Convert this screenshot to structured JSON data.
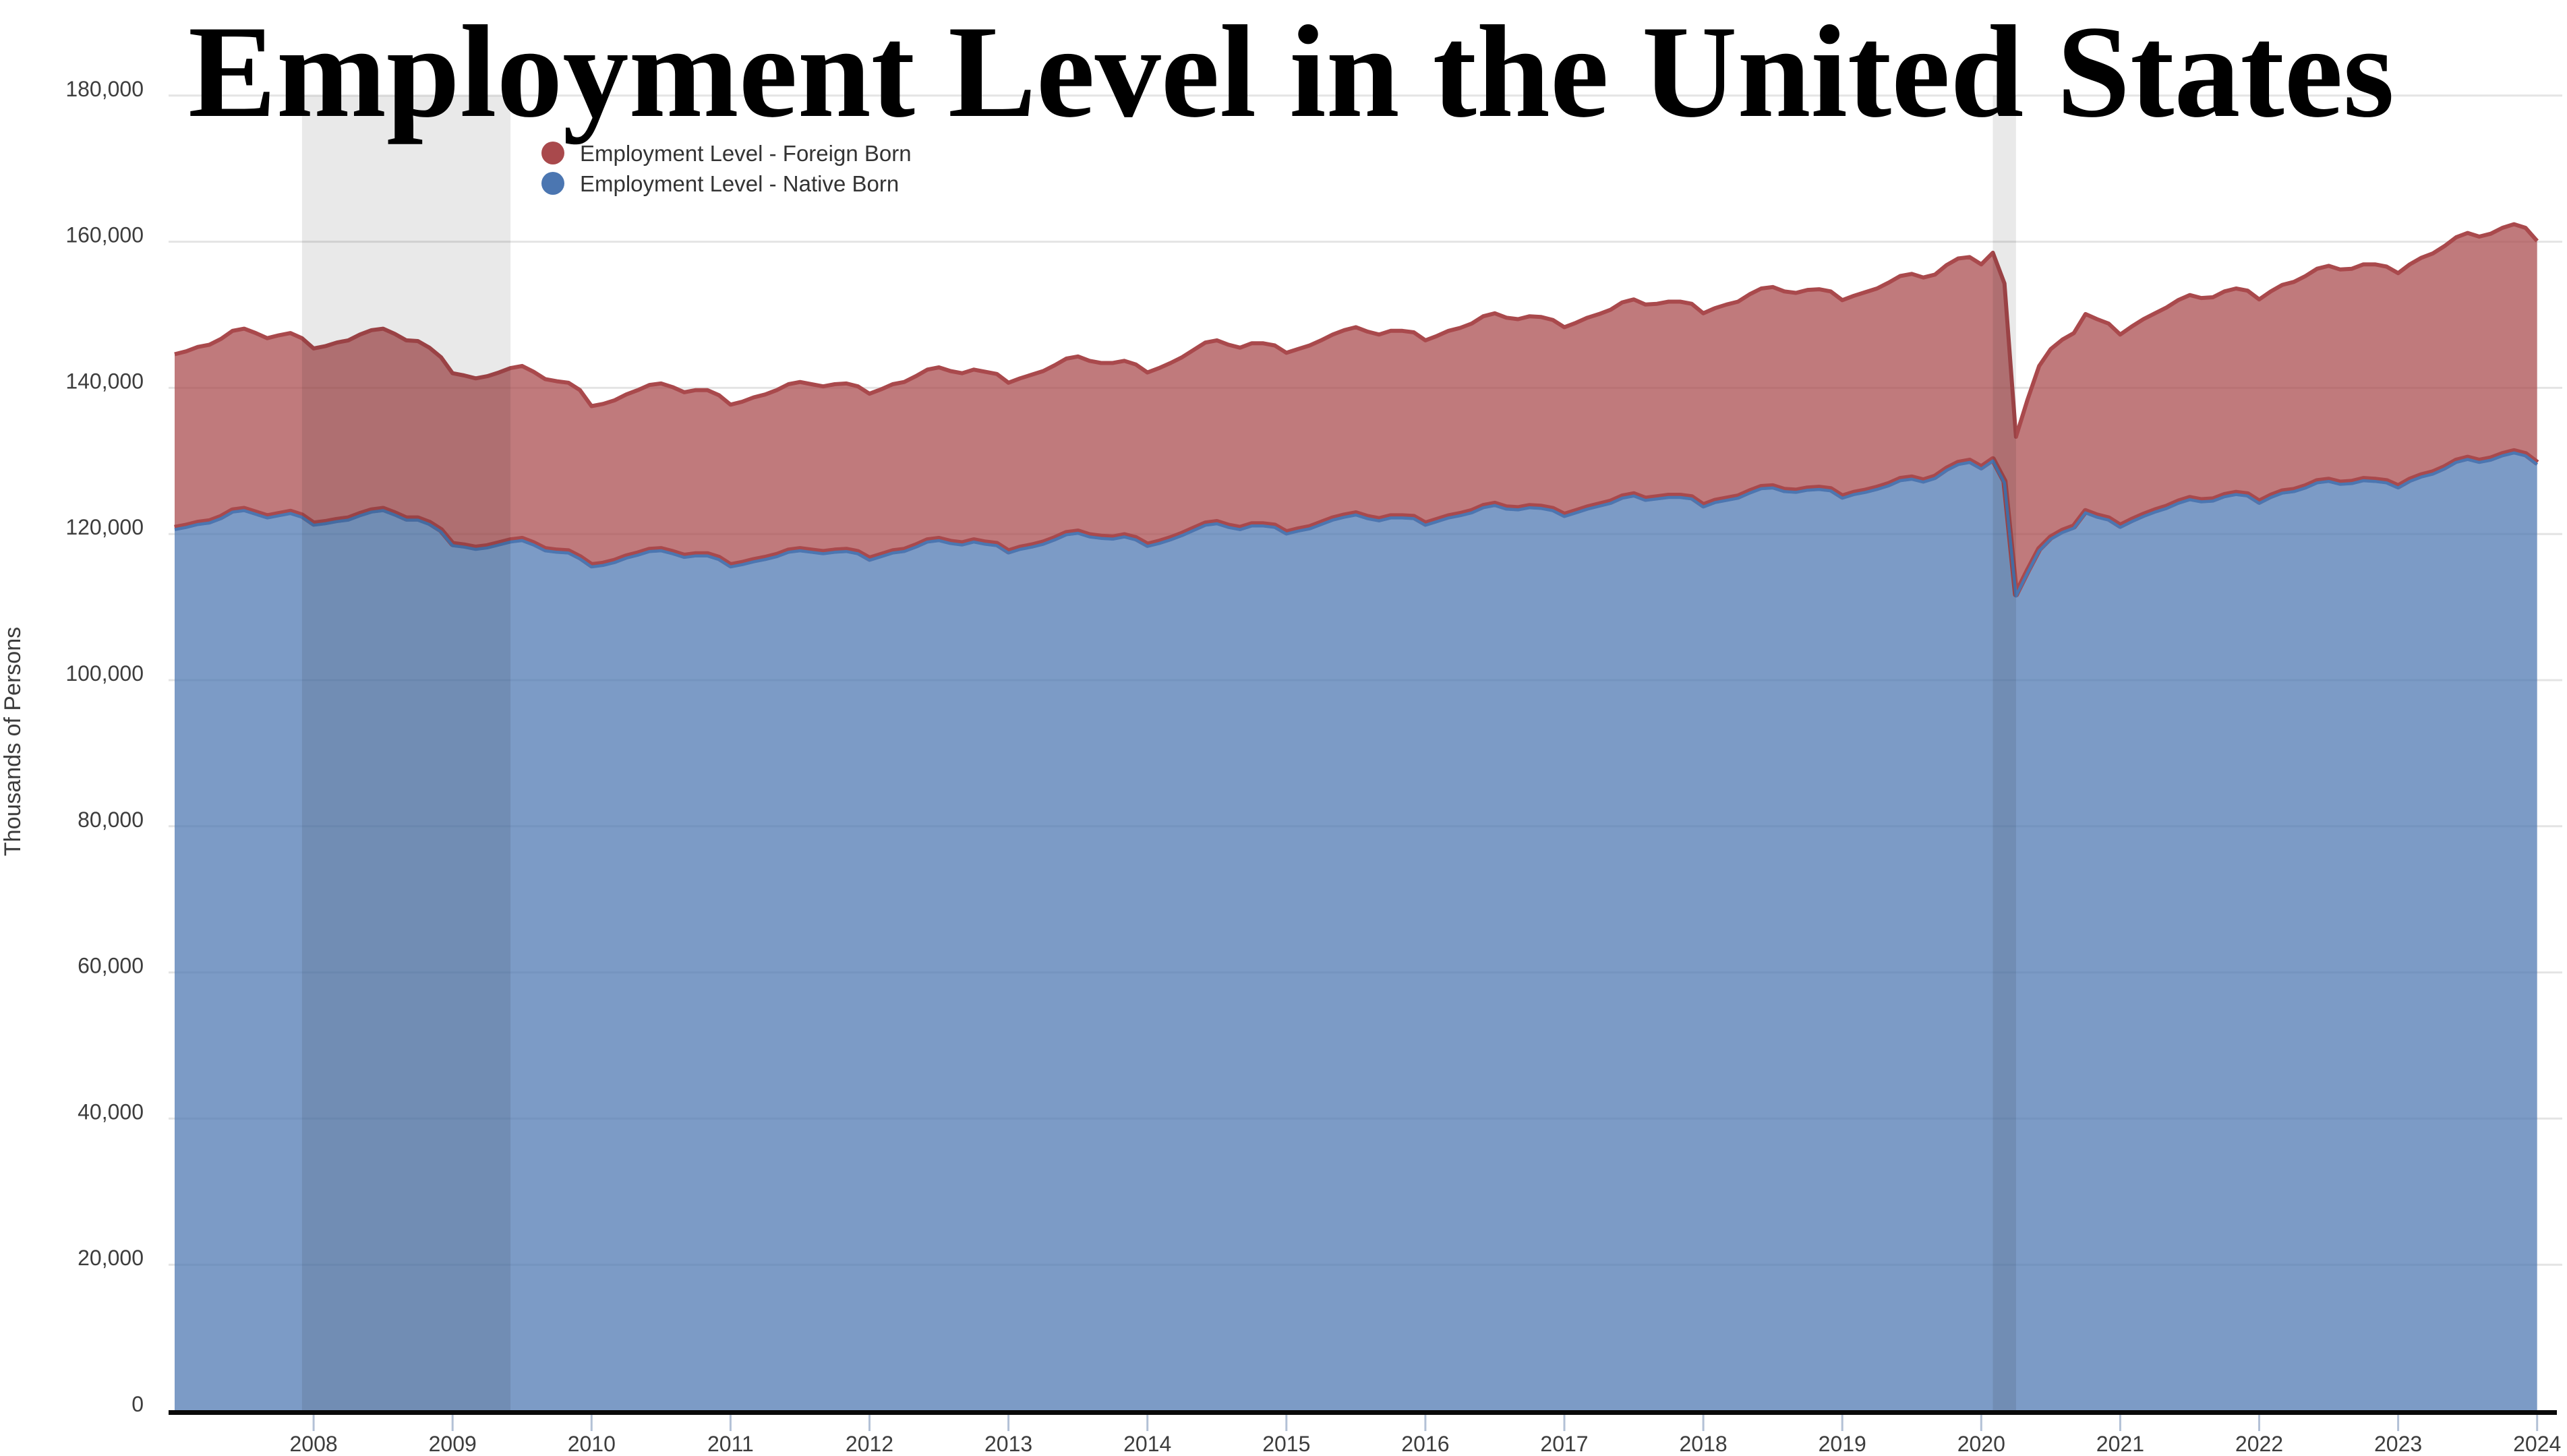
{
  "page": {
    "background": "#ffffff"
  },
  "chart_data": {
    "type": "area",
    "stacked": true,
    "title": "Employment Level in the United States",
    "ylabel": "Thousands of Persons",
    "frequency": "monthly",
    "x_start": "2007-01",
    "x_end": "2024-01",
    "ylim": [
      0,
      180000
    ],
    "ytick_step": 20000,
    "ytick_labels": [
      "0",
      "20,000",
      "40,000",
      "60,000",
      "80,000",
      "100,000",
      "120,000",
      "140,000",
      "160,000",
      "180,000"
    ],
    "xtick_years": [
      "2008",
      "2009",
      "2010",
      "2011",
      "2012",
      "2013",
      "2014",
      "2015",
      "2016",
      "2017",
      "2018",
      "2019",
      "2020",
      "2021",
      "2022",
      "2023",
      "2024"
    ],
    "grid": "horizontal",
    "gridline_color": "#e4e4e4",
    "axis_line_color": "#0a0a0a",
    "tick_color": "#b3c1d6",
    "legend_position": "top-left-inside",
    "fill_opacity": 0.73,
    "recession_band_color": "rgba(0,0,0,0.085)",
    "recession_bands": [
      {
        "from": "2007-12",
        "to": "2009-06"
      },
      {
        "from": "2020-02",
        "to": "2020-04"
      }
    ],
    "series": [
      {
        "name": "Employment Level - Foreign Born",
        "color": "#a9494c",
        "values": [
          24000,
          24100,
          24300,
          24400,
          24600,
          24800,
          24900,
          24800,
          24600,
          24700,
          24700,
          24500,
          24200,
          24300,
          24500,
          24600,
          24800,
          24900,
          24900,
          24800,
          24600,
          24500,
          24200,
          23900,
          23600,
          23500,
          23400,
          23500,
          23600,
          23800,
          23900,
          23700,
          23500,
          23400,
          23300,
          23100,
          22000,
          22100,
          22200,
          22400,
          22600,
          22800,
          22900,
          22800,
          22600,
          22700,
          22700,
          22500,
          22200,
          22300,
          22500,
          22600,
          22800,
          23000,
          23100,
          23000,
          22900,
          23000,
          23000,
          22900,
          22800,
          22900,
          23100,
          23200,
          23400,
          23600,
          23700,
          23600,
          23500,
          23600,
          23600,
          23500,
          23300,
          23400,
          23600,
          23700,
          23900,
          24100,
          24200,
          24100,
          24000,
          24100,
          24100,
          24000,
          23800,
          24000,
          24200,
          24400,
          24700,
          25000,
          25100,
          25000,
          24900,
          25000,
          25000,
          24900,
          24800,
          24900,
          25100,
          25200,
          25400,
          25600,
          25700,
          25600,
          25500,
          25600,
          25600,
          25500,
          25300,
          25400,
          25600,
          25700,
          25900,
          26200,
          26300,
          26200,
          26100,
          26200,
          26200,
          26100,
          25900,
          26000,
          26200,
          26300,
          26500,
          26800,
          26900,
          26800,
          26700,
          26800,
          26800,
          26700,
          26500,
          26600,
          26800,
          26900,
          27200,
          27400,
          27500,
          27400,
          27300,
          27400,
          27400,
          27300,
          27100,
          27200,
          27400,
          27500,
          27800,
          28000,
          28100,
          28000,
          27900,
          28100,
          28200,
          28100,
          28000,
          28500,
          27300,
          21800,
          23700,
          25300,
          26000,
          26400,
          26700,
          27200,
          27100,
          26900,
          26400,
          26700,
          27000,
          27200,
          27500,
          27800,
          28000,
          27900,
          27900,
          28100,
          28200,
          28100,
          27900,
          28200,
          28500,
          28700,
          29000,
          29300,
          29500,
          29400,
          29400,
          29600,
          29700,
          29600,
          29400,
          29700,
          30000,
          30200,
          30500,
          30800,
          31000,
          30900,
          31000,
          31200,
          31300,
          31200,
          30600
        ]
      },
      {
        "name": "Employment Level - Native Born",
        "color": "#4b76b1",
        "values": [
          120600,
          120900,
          121300,
          121500,
          122100,
          123000,
          123200,
          122700,
          122200,
          122500,
          122800,
          122300,
          121200,
          121400,
          121700,
          121900,
          122500,
          123000,
          123200,
          122600,
          121900,
          121900,
          121300,
          120300,
          118400,
          118200,
          117900,
          118100,
          118500,
          118900,
          119100,
          118500,
          117700,
          117500,
          117400,
          116600,
          115500,
          115700,
          116100,
          116700,
          117100,
          117600,
          117700,
          117300,
          116800,
          117000,
          117000,
          116500,
          115500,
          115800,
          116200,
          116500,
          116900,
          117500,
          117700,
          117500,
          117300,
          117500,
          117600,
          117300,
          116400,
          116900,
          117400,
          117600,
          118200,
          118900,
          119100,
          118700,
          118500,
          118900,
          118600,
          118400,
          117400,
          117900,
          118200,
          118600,
          119200,
          119900,
          120100,
          119600,
          119400,
          119300,
          119600,
          119200,
          118300,
          118700,
          119200,
          119800,
          120500,
          121200,
          121400,
          120900,
          120600,
          121100,
          121100,
          120900,
          120000,
          120400,
          120700,
          121300,
          121900,
          122300,
          122600,
          122100,
          121800,
          122200,
          122200,
          122100,
          121200,
          121700,
          122200,
          122500,
          122900,
          123600,
          123900,
          123400,
          123300,
          123600,
          123500,
          123200,
          122400,
          122900,
          123400,
          123800,
          124200,
          124900,
          125200,
          124600,
          124800,
          125000,
          125000,
          124800,
          123700,
          124300,
          124600,
          124900,
          125600,
          126200,
          126300,
          125800,
          125700,
          126000,
          126100,
          125900,
          124900,
          125400,
          125700,
          126100,
          126600,
          127300,
          127500,
          127100,
          127600,
          128700,
          129500,
          129800,
          128900,
          130000,
          127000,
          111500,
          114700,
          117700,
          119300,
          120200,
          120800,
          122900,
          122300,
          121900,
          120900,
          121700,
          122400,
          123000,
          123500,
          124200,
          124700,
          124400,
          124500,
          125100,
          125400,
          125200,
          124200,
          125000,
          125600,
          125800,
          126300,
          127000,
          127200,
          126800,
          126900,
          127300,
          127200,
          127000,
          126300,
          127200,
          127800,
          128200,
          128900,
          129800,
          130200,
          129800,
          130100,
          130700,
          131100,
          130700,
          129500
        ]
      }
    ]
  },
  "legend": {
    "items": [
      {
        "label": "Employment Level - Foreign Born",
        "color": "#a9494c"
      },
      {
        "label": "Employment Level - Native Born",
        "color": "#4b76b1"
      }
    ]
  }
}
